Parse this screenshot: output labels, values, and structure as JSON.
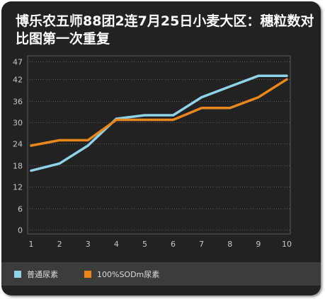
{
  "chart_data": {
    "type": "line",
    "title": "博乐农五师88团2连7月25日小麦大区：穗粒数对比图第一次重复",
    "xlabel": "",
    "ylabel": "",
    "x": [
      1,
      2,
      3,
      4,
      5,
      6,
      7,
      8,
      9,
      10
    ],
    "y_ticks": [
      0,
      6,
      12,
      18,
      24,
      30,
      36,
      42,
      47
    ],
    "ylim": [
      0,
      47
    ],
    "grid": true,
    "legend_position": "bottom",
    "series": [
      {
        "name": "普通尿素",
        "color": "#8fd3e8",
        "values": [
          16.5,
          18.5,
          23.5,
          31,
          32,
          32,
          37,
          40,
          43,
          43
        ]
      },
      {
        "name": "100%SODm尿素",
        "color": "#e8871e",
        "values": [
          23.5,
          25,
          25,
          30.7,
          30.7,
          30.7,
          34,
          34,
          37,
          42
        ]
      }
    ]
  },
  "colors": {
    "background": "#222222",
    "legend_bar": "#3c3c3c",
    "grid": "#5a5a5a",
    "axis_text": "#c8c8c8"
  }
}
